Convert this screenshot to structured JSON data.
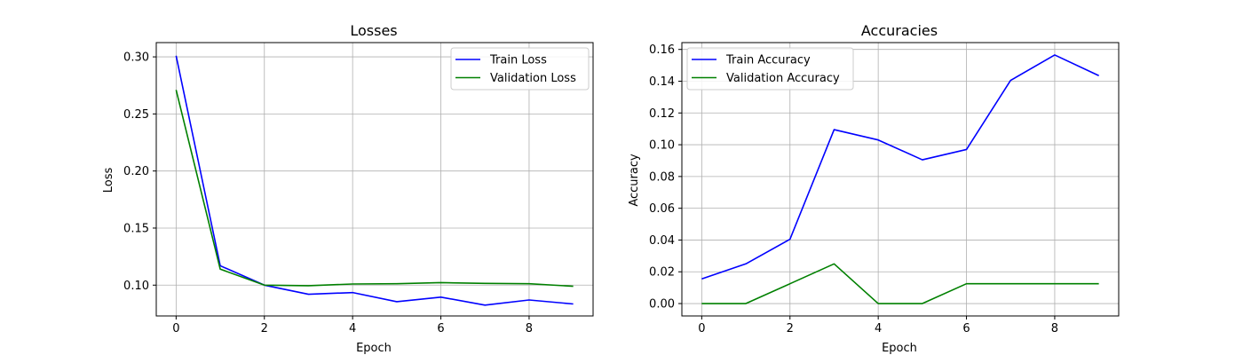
{
  "chart_data": [
    {
      "type": "line",
      "title": "Losses",
      "xlabel": "Epoch",
      "ylabel": "Loss",
      "x": [
        0,
        1,
        2,
        3,
        4,
        5,
        6,
        7,
        8,
        9
      ],
      "xticks": [
        "0",
        "2",
        "4",
        "6",
        "8"
      ],
      "xtick_values": [
        0,
        2,
        4,
        6,
        8
      ],
      "yticks": [
        "0.10",
        "0.15",
        "0.20",
        "0.25",
        "0.30"
      ],
      "ytick_values": [
        0.1,
        0.15,
        0.2,
        0.25,
        0.3
      ],
      "xlim": [
        -0.45,
        9.45
      ],
      "ylim": [
        0.073,
        0.3125
      ],
      "grid": true,
      "legend_position": "top-right",
      "series": [
        {
          "name": "Train Loss",
          "color": "#0000ff",
          "values": [
            0.301,
            0.117,
            0.1,
            0.092,
            0.0935,
            0.0855,
            0.0895,
            0.0825,
            0.087,
            0.0835
          ]
        },
        {
          "name": "Validation Loss",
          "color": "#008000",
          "values": [
            0.271,
            0.114,
            0.1,
            0.0995,
            0.101,
            0.1012,
            0.1022,
            0.1015,
            0.1012,
            0.099
          ]
        }
      ]
    },
    {
      "type": "line",
      "title": "Accuracies",
      "xlabel": "Epoch",
      "ylabel": "Accuracy",
      "x": [
        0,
        1,
        2,
        3,
        4,
        5,
        6,
        7,
        8,
        9
      ],
      "xticks": [
        "0",
        "2",
        "4",
        "6",
        "8"
      ],
      "xtick_values": [
        0,
        2,
        4,
        6,
        8
      ],
      "yticks": [
        "0.00",
        "0.02",
        "0.04",
        "0.06",
        "0.08",
        "0.10",
        "0.12",
        "0.14",
        "0.16"
      ],
      "ytick_values": [
        0.0,
        0.02,
        0.04,
        0.06,
        0.08,
        0.1,
        0.12,
        0.14,
        0.16
      ],
      "xlim": [
        -0.45,
        9.45
      ],
      "ylim": [
        -0.0078,
        0.1643
      ],
      "grid": true,
      "legend_position": "top-left",
      "series": [
        {
          "name": "Train Accuracy",
          "color": "#0000ff",
          "values": [
            0.0155,
            0.025,
            0.0405,
            0.1095,
            0.103,
            0.0905,
            0.097,
            0.1405,
            0.1565,
            0.1435
          ]
        },
        {
          "name": "Validation Accuracy",
          "color": "#008000",
          "values": [
            0.0,
            0.0,
            0.0125,
            0.025,
            0.0,
            0.0,
            0.0125,
            0.0125,
            0.0125,
            0.0125
          ]
        }
      ]
    }
  ]
}
